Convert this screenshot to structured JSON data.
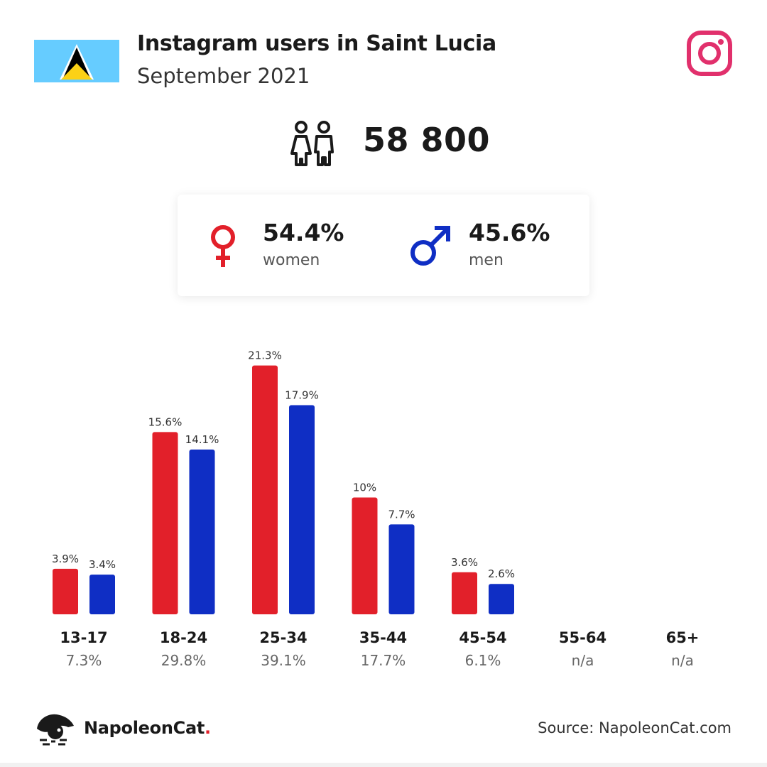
{
  "header": {
    "title": "Instagram users in Saint Lucia",
    "subtitle": "September 2021",
    "flag_icon": "saint-lucia-flag",
    "platform_icon": "instagram-icon"
  },
  "total": {
    "icon": "users-icon",
    "value": "58 800"
  },
  "gender": {
    "women": {
      "percent": "54.4%",
      "label": "women",
      "icon": "female-symbol-icon",
      "color": "#e2202a"
    },
    "men": {
      "percent": "45.6%",
      "label": "men",
      "icon": "male-symbol-icon",
      "color": "#0f2ec4"
    }
  },
  "chart_data": {
    "type": "bar",
    "categories": [
      "13-17",
      "18-24",
      "25-34",
      "35-44",
      "45-54",
      "55-64",
      "65+"
    ],
    "category_totals": [
      "7.3%",
      "29.8%",
      "39.1%",
      "17.7%",
      "6.1%",
      "n/a",
      "n/a"
    ],
    "series": [
      {
        "values": [
          3.9,
          15.6,
          21.3,
          10,
          3.6,
          null,
          null
        ],
        "labels": [
          "3.9%",
          "15.6%",
          "21.3%",
          "10%",
          "3.6%",
          "",
          ""
        ],
        "color": "#e2202a"
      },
      {
        "values": [
          3.4,
          14.1,
          17.9,
          7.7,
          2.6,
          null,
          null
        ],
        "labels": [
          "3.4%",
          "14.1%",
          "17.9%",
          "7.7%",
          "2.6%",
          "",
          ""
        ],
        "color": "#0f2ec4"
      }
    ]
  },
  "footer": {
    "brand_name": "NapoleonCat",
    "brand_dot": ".",
    "brand_icon": "napoleoncat-logo-icon",
    "source": "Source: NapoleonCat.com"
  }
}
